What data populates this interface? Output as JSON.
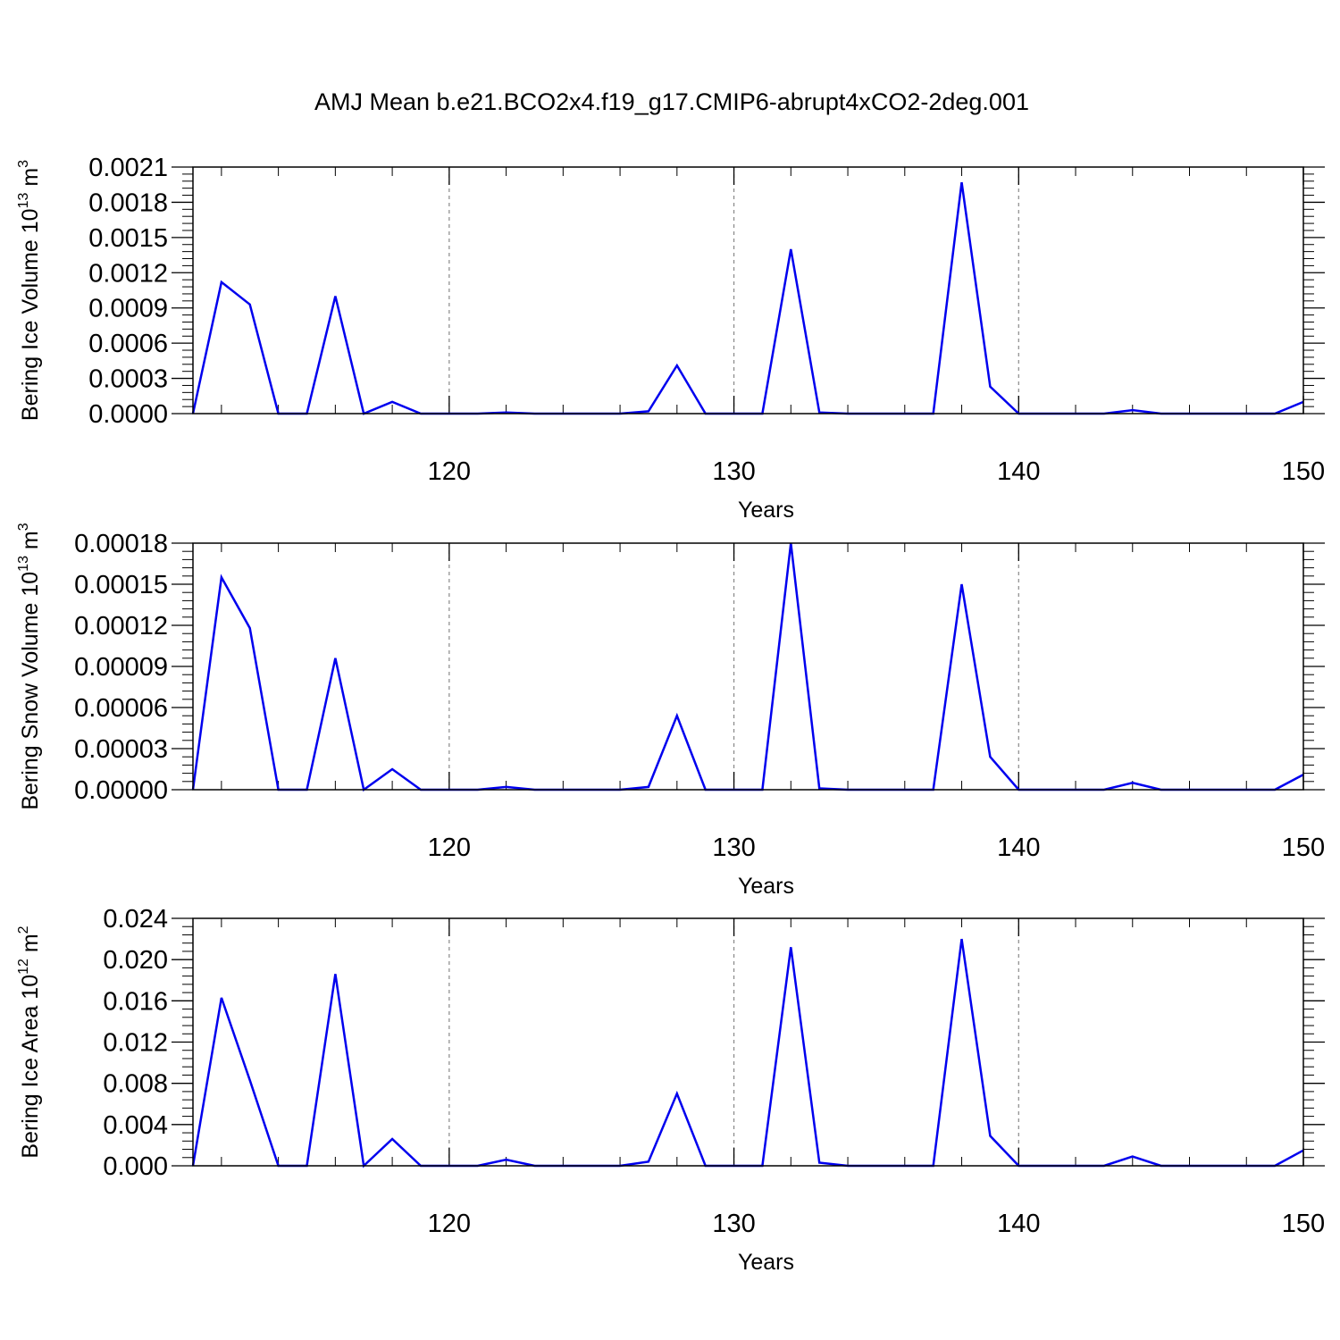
{
  "title": "AMJ Mean b.e21.BCO2x4.f19_g17.CMIP6-abrupt4xCO2-2deg.001",
  "colors": {
    "series": "#0000ee",
    "axis": "#000000",
    "grid": "#888888"
  },
  "chart_data": [
    {
      "type": "line",
      "xlabel": "Years",
      "ylabel_main": "Bering Ice Volume 10",
      "ylabel_exp": "13",
      "ylabel_unit": " m",
      "ylabel_unit_exp": "3",
      "xlim": [
        111,
        150
      ],
      "ylim": [
        0,
        0.0021
      ],
      "xticks": [
        120,
        130,
        140,
        150
      ],
      "xtick_labels": [
        "120",
        "130",
        "140",
        "150"
      ],
      "yticks": [
        0,
        0.0003,
        0.0006,
        0.0009,
        0.0012,
        0.0015,
        0.0018,
        0.0021
      ],
      "ytick_labels": [
        "0.0000",
        "0.0003",
        "0.0006",
        "0.0009",
        "0.0012",
        "0.0015",
        "0.0018",
        "0.0021"
      ],
      "grid_x": [
        120,
        130,
        140
      ],
      "x": [
        111,
        112,
        113,
        114,
        115,
        116,
        117,
        118,
        119,
        120,
        121,
        122,
        123,
        124,
        125,
        126,
        127,
        128,
        129,
        130,
        131,
        132,
        133,
        134,
        135,
        136,
        137,
        138,
        139,
        140,
        141,
        142,
        143,
        144,
        145,
        146,
        147,
        148,
        149,
        150
      ],
      "values": [
        0,
        0.00112,
        0.00093,
        0,
        0,
        0.001,
        0,
        0.0001,
        0,
        0,
        0,
        1e-05,
        0,
        0,
        0,
        0,
        2e-05,
        0.00041,
        0,
        0,
        0,
        0.0014,
        1e-05,
        0,
        0,
        0,
        0,
        0.00197,
        0.00023,
        0,
        0,
        0,
        0,
        3e-05,
        0,
        0,
        0,
        0,
        0,
        0.0001
      ]
    },
    {
      "type": "line",
      "xlabel": "Years",
      "ylabel_main": "Bering Snow Volume 10",
      "ylabel_exp": "13",
      "ylabel_unit": " m",
      "ylabel_unit_exp": "3",
      "xlim": [
        111,
        150
      ],
      "ylim": [
        0,
        0.00018
      ],
      "xticks": [
        120,
        130,
        140,
        150
      ],
      "xtick_labels": [
        "120",
        "130",
        "140",
        "150"
      ],
      "yticks": [
        0,
        3e-05,
        6e-05,
        9e-05,
        0.00012,
        0.00015,
        0.00018
      ],
      "ytick_labels": [
        "0.00000",
        "0.00003",
        "0.00006",
        "0.00009",
        "0.00012",
        "0.00015",
        "0.00018"
      ],
      "grid_x": [
        120,
        130,
        140
      ],
      "x": [
        111,
        112,
        113,
        114,
        115,
        116,
        117,
        118,
        119,
        120,
        121,
        122,
        123,
        124,
        125,
        126,
        127,
        128,
        129,
        130,
        131,
        132,
        133,
        134,
        135,
        136,
        137,
        138,
        139,
        140,
        141,
        142,
        143,
        144,
        145,
        146,
        147,
        148,
        149,
        150
      ],
      "values": [
        0,
        0.000155,
        0.000118,
        0,
        0,
        9.6e-05,
        0,
        1.5e-05,
        0,
        0,
        0,
        2e-06,
        0,
        0,
        0,
        0,
        2e-06,
        5.4e-05,
        0,
        0,
        0,
        0.00018,
        1e-06,
        0,
        0,
        0,
        0,
        0.00015,
        2.4e-05,
        0,
        0,
        0,
        0,
        5e-06,
        0,
        0,
        0,
        0,
        0,
        1.1e-05
      ]
    },
    {
      "type": "line",
      "xlabel": "Years",
      "ylabel_main": "Bering Ice Area 10",
      "ylabel_exp": "12",
      "ylabel_unit": " m",
      "ylabel_unit_exp": "2",
      "xlim": [
        111,
        150
      ],
      "ylim": [
        0,
        0.024
      ],
      "xticks": [
        120,
        130,
        140,
        150
      ],
      "xtick_labels": [
        "120",
        "130",
        "140",
        "150"
      ],
      "yticks": [
        0,
        0.004,
        0.008,
        0.012,
        0.016,
        0.02,
        0.024
      ],
      "ytick_labels": [
        "0.000",
        "0.004",
        "0.008",
        "0.012",
        "0.016",
        "0.020",
        "0.024"
      ],
      "grid_x": [
        120,
        130,
        140
      ],
      "x": [
        111,
        112,
        113,
        114,
        115,
        116,
        117,
        118,
        119,
        120,
        121,
        122,
        123,
        124,
        125,
        126,
        127,
        128,
        129,
        130,
        131,
        132,
        133,
        134,
        135,
        136,
        137,
        138,
        139,
        140,
        141,
        142,
        143,
        144,
        145,
        146,
        147,
        148,
        149,
        150
      ],
      "values": [
        0,
        0.0163,
        0.0083,
        0,
        0,
        0.0186,
        0,
        0.0026,
        0,
        0,
        0,
        0.0006,
        0,
        0,
        0,
        0,
        0.0004,
        0.007,
        0,
        0,
        0,
        0.0212,
        0.0003,
        0,
        0,
        0,
        0,
        0.022,
        0.0029,
        0,
        0,
        0,
        0,
        0.0009,
        0,
        0,
        0,
        0,
        0,
        0.0015
      ]
    }
  ]
}
